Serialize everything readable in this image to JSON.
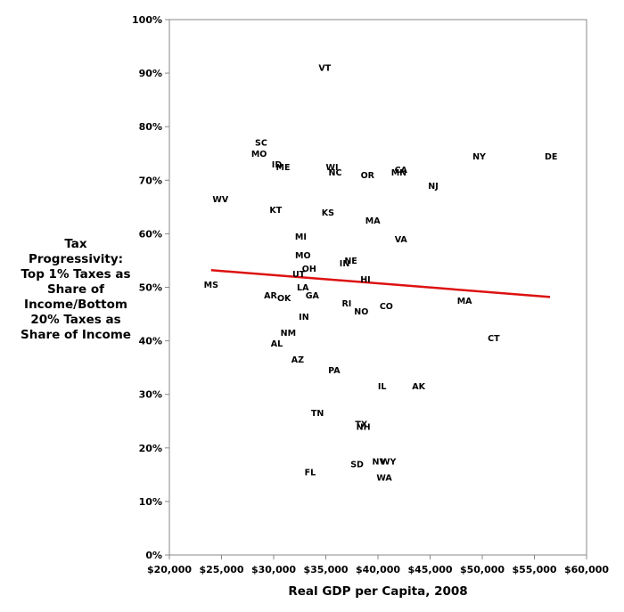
{
  "chart_data": {
    "type": "scatter",
    "ylabel_lines": [
      "Tax",
      "Progressivity:",
      "Top 1% Taxes as",
      "Share of",
      "Income/Bottom",
      "20% Taxes as",
      "Share of Income"
    ],
    "xlabel": "Real GDP per Capita, 2008",
    "xlim": [
      20000,
      60000
    ],
    "ylim": [
      0,
      100
    ],
    "x_ticks": [
      20000,
      25000,
      30000,
      35000,
      40000,
      45000,
      50000,
      55000,
      60000
    ],
    "x_tick_labels": [
      "$20,000",
      "$25,000",
      "$30,000",
      "$35,000",
      "$40,000",
      "$45,000",
      "$50,000",
      "$55,000",
      "$60,000"
    ],
    "y_ticks": [
      0,
      10,
      20,
      30,
      40,
      50,
      60,
      70,
      80,
      90,
      100
    ],
    "y_tick_labels": [
      "0%",
      "10%",
      "20%",
      "30%",
      "40%",
      "50%",
      "60%",
      "70%",
      "80%",
      "90%",
      "100%"
    ],
    "grid": false,
    "trendline": {
      "x": [
        24000,
        56500
      ],
      "y": [
        53.2,
        48.2
      ],
      "color": "#dd1111"
    },
    "points": [
      {
        "label": "VT",
        "x": 34900,
        "y": 91.0
      },
      {
        "label": "SC",
        "x": 28800,
        "y": 77.0
      },
      {
        "label": "MO",
        "x": 28600,
        "y": 75.0
      },
      {
        "label": "NY",
        "x": 49700,
        "y": 74.5
      },
      {
        "label": "DE",
        "x": 56600,
        "y": 74.5
      },
      {
        "label": "ID",
        "x": 30300,
        "y": 73.0
      },
      {
        "label": "ME",
        "x": 30900,
        "y": 72.5
      },
      {
        "label": "WI",
        "x": 35600,
        "y": 72.5
      },
      {
        "label": "CA",
        "x": 42200,
        "y": 72.0
      },
      {
        "label": "NC",
        "x": 35900,
        "y": 71.5
      },
      {
        "label": "MN",
        "x": 42000,
        "y": 71.5
      },
      {
        "label": "OR",
        "x": 39000,
        "y": 71.0
      },
      {
        "label": "NJ",
        "x": 45300,
        "y": 69.0
      },
      {
        "label": "WV",
        "x": 24900,
        "y": 66.5
      },
      {
        "label": "KT",
        "x": 30200,
        "y": 64.5
      },
      {
        "label": "KS",
        "x": 35200,
        "y": 64.0
      },
      {
        "label": "MA",
        "x": 39500,
        "y": 62.5
      },
      {
        "label": "MI",
        "x": 32600,
        "y": 59.5
      },
      {
        "label": "VA",
        "x": 42200,
        "y": 59.0
      },
      {
        "label": "MO",
        "x": 32800,
        "y": 56.0
      },
      {
        "label": "NE",
        "x": 37400,
        "y": 55.0
      },
      {
        "label": "IN",
        "x": 36800,
        "y": 54.5
      },
      {
        "label": "OH",
        "x": 33400,
        "y": 53.5
      },
      {
        "label": "UT",
        "x": 32400,
        "y": 52.5
      },
      {
        "label": "HI",
        "x": 38800,
        "y": 51.5
      },
      {
        "label": "MS",
        "x": 24000,
        "y": 50.5
      },
      {
        "label": "LA",
        "x": 32800,
        "y": 50.0
      },
      {
        "label": "AR",
        "x": 29700,
        "y": 48.5
      },
      {
        "label": "OK",
        "x": 31000,
        "y": 48.0
      },
      {
        "label": "GA",
        "x": 33700,
        "y": 48.5
      },
      {
        "label": "MA",
        "x": 48300,
        "y": 47.5
      },
      {
        "label": "RI",
        "x": 37000,
        "y": 47.0
      },
      {
        "label": "CO",
        "x": 40800,
        "y": 46.5
      },
      {
        "label": "NO",
        "x": 38400,
        "y": 45.5
      },
      {
        "label": "IN",
        "x": 32900,
        "y": 44.5
      },
      {
        "label": "NM",
        "x": 31400,
        "y": 41.5
      },
      {
        "label": "CT",
        "x": 51100,
        "y": 40.5
      },
      {
        "label": "AL",
        "x": 30300,
        "y": 39.5
      },
      {
        "label": "AZ",
        "x": 32300,
        "y": 36.5
      },
      {
        "label": "PA",
        "x": 35800,
        "y": 34.5
      },
      {
        "label": "IL",
        "x": 40400,
        "y": 31.5
      },
      {
        "label": "AK",
        "x": 43900,
        "y": 31.5
      },
      {
        "label": "TN",
        "x": 34200,
        "y": 26.5
      },
      {
        "label": "TX",
        "x": 38400,
        "y": 24.5
      },
      {
        "label": "NH",
        "x": 38600,
        "y": 24.0
      },
      {
        "label": "NV",
        "x": 40100,
        "y": 17.5
      },
      {
        "label": "WY",
        "x": 41000,
        "y": 17.5
      },
      {
        "label": "SD",
        "x": 38000,
        "y": 17.0
      },
      {
        "label": "FL",
        "x": 33500,
        "y": 15.5
      },
      {
        "label": "WA",
        "x": 40600,
        "y": 14.5
      }
    ]
  }
}
